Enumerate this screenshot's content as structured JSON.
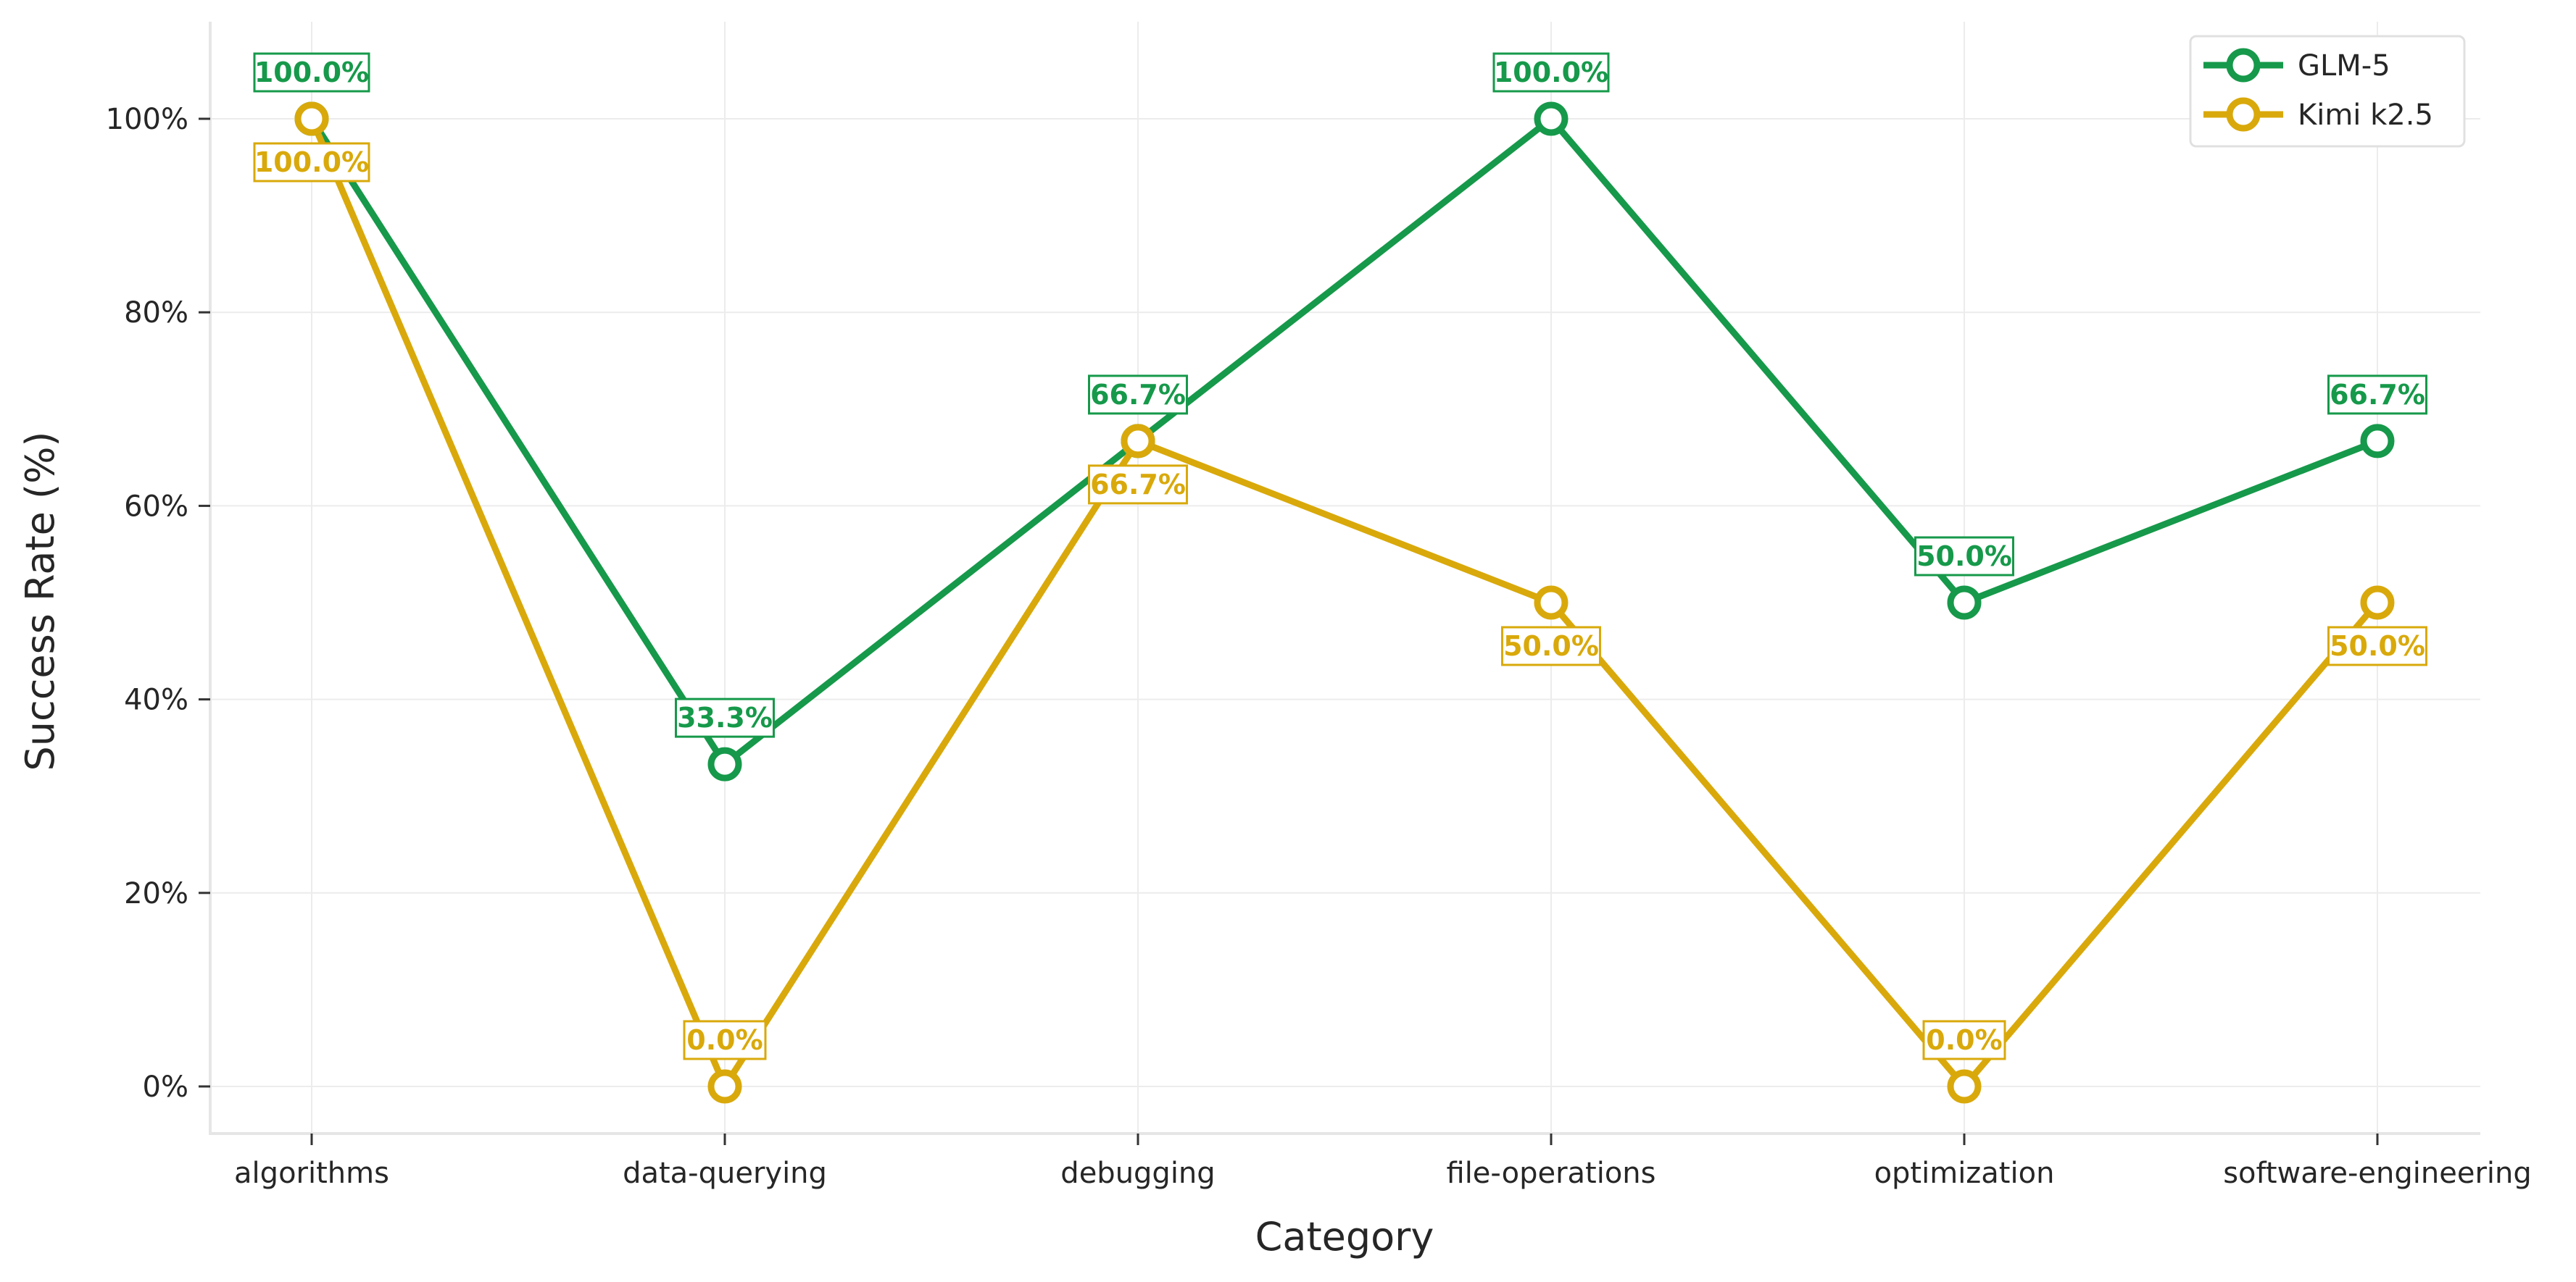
{
  "chart_data": {
    "type": "line",
    "xlabel": "Category",
    "ylabel": "Success Rate (%)",
    "categories": [
      "algorithms",
      "data-querying",
      "debugging",
      "file-operations",
      "optimization",
      "software-engineering"
    ],
    "ylim": [
      -5,
      110
    ],
    "yticks": [
      0,
      20,
      40,
      60,
      80,
      100
    ],
    "ytick_labels": [
      "0%",
      "20%",
      "40%",
      "60%",
      "80%",
      "100%"
    ],
    "grid": true,
    "legend_position": "top-right",
    "series": [
      {
        "name": "GLM-5",
        "color": "#16994a",
        "values": [
          100.0,
          33.3,
          66.7,
          100.0,
          50.0,
          66.7
        ],
        "labels": [
          "100.0%",
          "33.3%",
          "66.7%",
          "100.0%",
          "50.0%",
          "66.7%"
        ]
      },
      {
        "name": "Kimi k2.5",
        "color": "#d9a90b",
        "values": [
          100.0,
          0.0,
          66.7,
          50.0,
          0.0,
          50.0
        ],
        "labels": [
          "100.0%",
          "0.0%",
          "66.7%",
          "50.0%",
          "0.0%",
          "50.0%"
        ]
      }
    ]
  }
}
